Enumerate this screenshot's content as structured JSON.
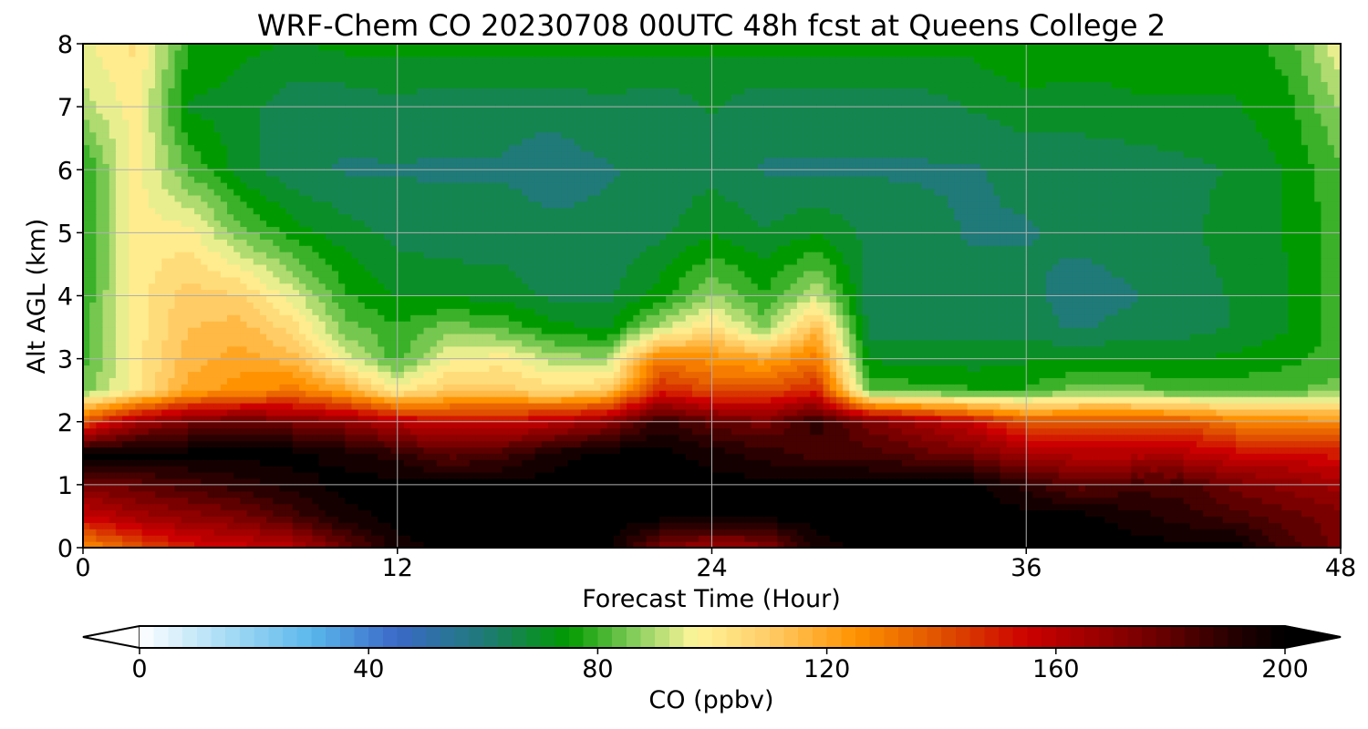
{
  "chart_data": {
    "type": "heatmap",
    "title": "WRF-Chem CO  20230708 00UTC 48h fcst at Queens College 2",
    "xlabel": "Forecast Time (Hour)",
    "ylabel": "Alt AGL (km)",
    "xlim": [
      0,
      48
    ],
    "ylim": [
      0,
      8
    ],
    "xticks": [
      0,
      12,
      24,
      36,
      48
    ],
    "yticks": [
      0,
      1,
      2,
      3,
      4,
      5,
      6,
      7,
      8
    ],
    "grid": true,
    "colorbar": {
      "label": "CO  (ppbv)",
      "range": [
        0,
        200
      ],
      "ticks": [
        0,
        40,
        80,
        120,
        160,
        200
      ],
      "extend": "both",
      "orientation": "horizontal",
      "stops": [
        {
          "v": 0,
          "c": "#ffffff"
        },
        {
          "v": 15,
          "c": "#a8dcf5"
        },
        {
          "v": 30,
          "c": "#5ab8ec"
        },
        {
          "v": 45,
          "c": "#3a68c8"
        },
        {
          "v": 60,
          "c": "#1f7a78"
        },
        {
          "v": 75,
          "c": "#009a00"
        },
        {
          "v": 87,
          "c": "#8cd060"
        },
        {
          "v": 97,
          "c": "#fff59a"
        },
        {
          "v": 110,
          "c": "#ffcc66"
        },
        {
          "v": 125,
          "c": "#ff9200"
        },
        {
          "v": 140,
          "c": "#e05000"
        },
        {
          "v": 155,
          "c": "#cc0000"
        },
        {
          "v": 175,
          "c": "#7a0000"
        },
        {
          "v": 190,
          "c": "#2a0000"
        },
        {
          "v": 200,
          "c": "#000000"
        }
      ]
    },
    "grid_hours": [
      0,
      2,
      4,
      6,
      8,
      10,
      12,
      14,
      16,
      18,
      20,
      22,
      24,
      26,
      28,
      30,
      32,
      34,
      36,
      38,
      40,
      42,
      44,
      46,
      48
    ],
    "grid_alts_km": [
      0,
      0.5,
      1,
      1.5,
      2,
      2.5,
      3,
      3.5,
      4,
      5,
      6,
      7,
      8
    ],
    "values_ppbv": [
      [
        125,
        138,
        150,
        155,
        160,
        178,
        195,
        200,
        200,
        200,
        200,
        175,
        165,
        170,
        195,
        200,
        200,
        200,
        200,
        200,
        200,
        200,
        200,
        185,
        175
      ],
      [
        155,
        165,
        170,
        175,
        185,
        195,
        200,
        200,
        200,
        200,
        200,
        200,
        200,
        200,
        200,
        200,
        200,
        200,
        200,
        200,
        195,
        190,
        185,
        180,
        175
      ],
      [
        175,
        180,
        185,
        190,
        195,
        200,
        200,
        200,
        200,
        200,
        200,
        200,
        200,
        200,
        200,
        200,
        200,
        200,
        190,
        180,
        185,
        185,
        175,
        170,
        165
      ],
      [
        200,
        200,
        200,
        200,
        200,
        195,
        190,
        180,
        185,
        195,
        200,
        200,
        195,
        190,
        185,
        185,
        180,
        175,
        165,
        160,
        160,
        160,
        155,
        155,
        150
      ],
      [
        140,
        165,
        175,
        180,
        175,
        170,
        160,
        155,
        155,
        160,
        170,
        190,
        180,
        175,
        190,
        175,
        165,
        155,
        140,
        140,
        140,
        140,
        130,
        128,
        125
      ],
      [
        85,
        100,
        120,
        125,
        130,
        120,
        100,
        110,
        110,
        105,
        110,
        150,
        140,
        140,
        150,
        82,
        80,
        78,
        78,
        85,
        85,
        80,
        80,
        82,
        85
      ],
      [
        80,
        100,
        115,
        120,
        115,
        95,
        80,
        97,
        100,
        90,
        88,
        130,
        125,
        120,
        130,
        72,
        70,
        70,
        72,
        72,
        72,
        72,
        74,
        76,
        80
      ],
      [
        80,
        100,
        112,
        115,
        105,
        85,
        78,
        85,
        82,
        74,
        72,
        90,
        105,
        85,
        115,
        65,
        65,
        65,
        64,
        62,
        64,
        65,
        68,
        72,
        80
      ],
      [
        78,
        100,
        110,
        108,
        95,
        78,
        72,
        72,
        70,
        66,
        66,
        75,
        88,
        78,
        92,
        65,
        64,
        64,
        64,
        60,
        62,
        65,
        68,
        72,
        80
      ],
      [
        76,
        100,
        100,
        85,
        75,
        70,
        66,
        64,
        65,
        64,
        64,
        66,
        72,
        68,
        72,
        66,
        64,
        62,
        62,
        64,
        65,
        66,
        70,
        73,
        80
      ],
      [
        76,
        100,
        82,
        70,
        64,
        62,
        62,
        62,
        62,
        60,
        62,
        64,
        66,
        62,
        62,
        62,
        62,
        62,
        64,
        64,
        64,
        66,
        68,
        73,
        82
      ],
      [
        90,
        100,
        72,
        70,
        64,
        64,
        66,
        64,
        64,
        64,
        66,
        64,
        68,
        64,
        65,
        64,
        65,
        68,
        70,
        70,
        72,
        72,
        72,
        76,
        88
      ],
      [
        96,
        104,
        78,
        74,
        72,
        74,
        74,
        74,
        74,
        74,
        74,
        74,
        74,
        74,
        74,
        74,
        74,
        74,
        78,
        76,
        74,
        74,
        74,
        80,
        97
      ]
    ]
  }
}
